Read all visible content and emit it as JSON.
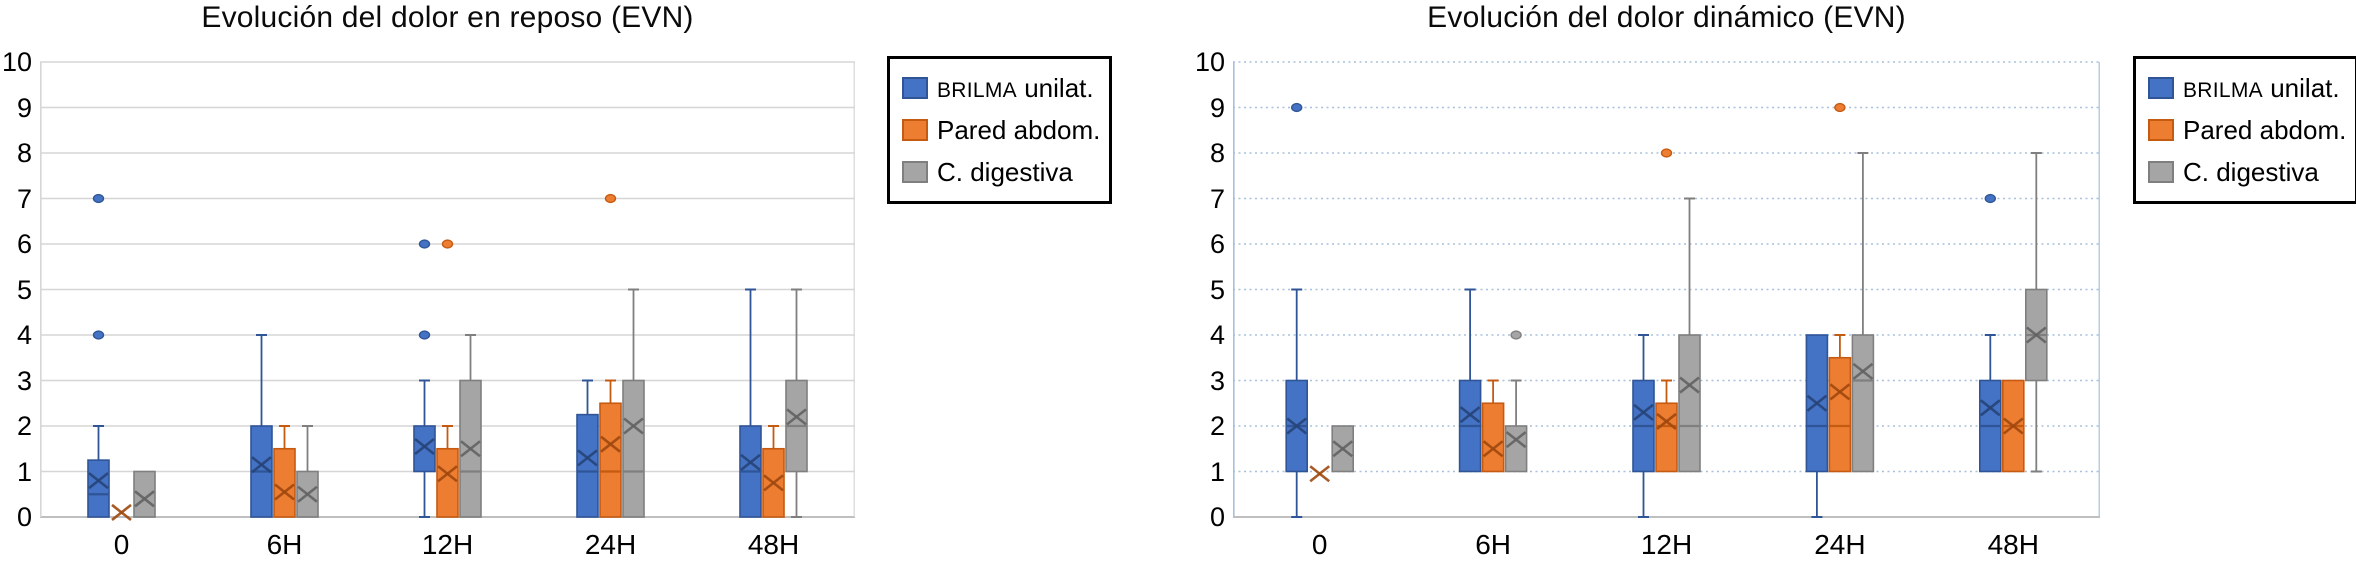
{
  "chart_data": [
    {
      "type": "boxplot",
      "id": "dolor-reposo",
      "title": "Evolución del dolor en reposo (EVN)",
      "categories": [
        "0",
        "6H",
        "12H",
        "24H",
        "48H"
      ],
      "ylim": [
        0,
        10
      ],
      "yticks": [
        0,
        1,
        2,
        3,
        4,
        5,
        6,
        7,
        8,
        9,
        10
      ],
      "grid_style": "solid",
      "grid_color": "#d6d6d6",
      "axis_color": "#bfbfbf",
      "legend_position": "right",
      "series": [
        {
          "name": "BRILMA unilat.",
          "acronym": "BRILMA",
          "rest": " unilat.",
          "fill": "#4472C4",
          "stroke": "#2F5597",
          "marker": "#264478",
          "boxes": [
            {
              "lo": 0,
              "q1": 0,
              "med": 0.5,
              "mean": 0.8,
              "q3": 1.25,
              "hi": 2,
              "outliers": [
                4,
                7
              ]
            },
            {
              "lo": 0,
              "q1": 0,
              "med": 1,
              "mean": 1.15,
              "q3": 2,
              "hi": 4,
              "outliers": []
            },
            {
              "lo": 0,
              "q1": 1,
              "med": null,
              "mean": 1.55,
              "q3": 2,
              "hi": 3,
              "outliers": [
                4,
                6
              ]
            },
            {
              "lo": 0,
              "q1": 0,
              "med": 1,
              "mean": 1.3,
              "q3": 2.25,
              "hi": 3,
              "outliers": []
            },
            {
              "lo": 0,
              "q1": 0,
              "med": 1,
              "mean": 1.2,
              "q3": 2,
              "hi": 5,
              "outliers": []
            }
          ]
        },
        {
          "name": "Pared abdom.",
          "fill": "#ED7D31",
          "stroke": "#C55A11",
          "marker": "#9E480E",
          "boxes": [
            {
              "lo": 0,
              "q1": 0,
              "med": null,
              "mean": 0.1,
              "q3": 0,
              "hi": 0,
              "outliers": []
            },
            {
              "lo": 0,
              "q1": 0,
              "med": null,
              "mean": 0.55,
              "q3": 1.5,
              "hi": 2,
              "outliers": []
            },
            {
              "lo": 0,
              "q1": 0,
              "med": null,
              "mean": 0.95,
              "q3": 1.5,
              "hi": 2,
              "outliers": [
                6
              ]
            },
            {
              "lo": 0,
              "q1": 0,
              "med": 1,
              "mean": 1.6,
              "q3": 2.5,
              "hi": 3,
              "outliers": [
                7
              ]
            },
            {
              "lo": 0,
              "q1": 0,
              "med": null,
              "mean": 0.75,
              "q3": 1.5,
              "hi": 2,
              "outliers": []
            }
          ]
        },
        {
          "name": "C. digestiva",
          "fill": "#A5A5A5",
          "stroke": "#7F7F7F",
          "marker": "#636363",
          "boxes": [
            {
              "lo": 0,
              "q1": 0,
              "med": null,
              "mean": 0.4,
              "q3": 1,
              "hi": 1,
              "outliers": []
            },
            {
              "lo": 0,
              "q1": 0,
              "med": null,
              "mean": 0.5,
              "q3": 1,
              "hi": 2,
              "outliers": []
            },
            {
              "lo": 0,
              "q1": 0,
              "med": 1,
              "mean": 1.5,
              "q3": 3,
              "hi": 4,
              "outliers": []
            },
            {
              "lo": 0,
              "q1": 0,
              "med": 1,
              "mean": 2,
              "q3": 3,
              "hi": 5,
              "outliers": []
            },
            {
              "lo": 0,
              "q1": 1,
              "med": 2,
              "mean": 2.2,
              "q3": 3,
              "hi": 5,
              "outliers": []
            }
          ]
        }
      ]
    },
    {
      "type": "boxplot",
      "id": "dolor-dinamico",
      "title": "Evolución del dolor dinámico (EVN)",
      "categories": [
        "0",
        "6H",
        "12H",
        "24H",
        "48H"
      ],
      "ylim": [
        0,
        10
      ],
      "yticks": [
        0,
        1,
        2,
        3,
        4,
        5,
        6,
        7,
        8,
        9,
        10
      ],
      "grid_style": "dotted",
      "grid_color": "#a8c0dc",
      "axis_color": "#bfbfbf",
      "legend_position": "right",
      "series": [
        {
          "name": "BRILMA unilat.",
          "acronym": "BRILMA",
          "rest": " unilat.",
          "fill": "#4472C4",
          "stroke": "#2F5597",
          "marker": "#264478",
          "boxes": [
            {
              "lo": 0,
              "q1": 1,
              "med": 2,
              "mean": 2,
              "q3": 3,
              "hi": 5,
              "outliers": [
                9
              ]
            },
            {
              "lo": 1,
              "q1": 1,
              "med": 2,
              "mean": 2.25,
              "q3": 3,
              "hi": 5,
              "outliers": []
            },
            {
              "lo": 0,
              "q1": 1,
              "med": 2,
              "mean": 2.3,
              "q3": 3,
              "hi": 4,
              "outliers": []
            },
            {
              "lo": 0,
              "q1": 1,
              "med": 2,
              "mean": 2.5,
              "q3": 4,
              "hi": 4,
              "outliers": []
            },
            {
              "lo": 1,
              "q1": 1,
              "med": 2,
              "mean": 2.4,
              "q3": 3,
              "hi": 4,
              "outliers": [
                7
              ]
            }
          ]
        },
        {
          "name": "Pared abdom.",
          "fill": "#ED7D31",
          "stroke": "#C55A11",
          "marker": "#9E480E",
          "boxes": [
            {
              "lo": 1,
              "q1": 1,
              "med": null,
              "mean": 0.95,
              "q3": 1,
              "hi": 1,
              "outliers": []
            },
            {
              "lo": 1,
              "q1": 1,
              "med": null,
              "mean": 1.5,
              "q3": 2.5,
              "hi": 3,
              "outliers": []
            },
            {
              "lo": 1,
              "q1": 1,
              "med": 2,
              "mean": 2.1,
              "q3": 2.5,
              "hi": 3,
              "outliers": [
                8
              ]
            },
            {
              "lo": 1,
              "q1": 1,
              "med": 2,
              "mean": 2.75,
              "q3": 3.5,
              "hi": 4,
              "outliers": [
                9
              ]
            },
            {
              "lo": 1,
              "q1": 1,
              "med": 2,
              "mean": 2,
              "q3": 3,
              "hi": 3,
              "outliers": []
            }
          ]
        },
        {
          "name": "C. digestiva",
          "fill": "#A5A5A5",
          "stroke": "#7F7F7F",
          "marker": "#636363",
          "boxes": [
            {
              "lo": 1,
              "q1": 1,
              "med": null,
              "mean": 1.5,
              "q3": 2,
              "hi": 2,
              "outliers": []
            },
            {
              "lo": 1,
              "q1": 1,
              "med": null,
              "mean": 1.7,
              "q3": 2,
              "hi": 3,
              "outliers": [
                4
              ]
            },
            {
              "lo": 1,
              "q1": 1,
              "med": 2,
              "mean": 2.9,
              "q3": 4,
              "hi": 7,
              "outliers": []
            },
            {
              "lo": 1,
              "q1": 1,
              "med": 3,
              "mean": 3.2,
              "q3": 4,
              "hi": 8,
              "outliers": []
            },
            {
              "lo": 1,
              "q1": 3,
              "med": 4,
              "mean": 4,
              "q3": 5,
              "hi": 8,
              "outliers": []
            }
          ]
        }
      ]
    }
  ]
}
